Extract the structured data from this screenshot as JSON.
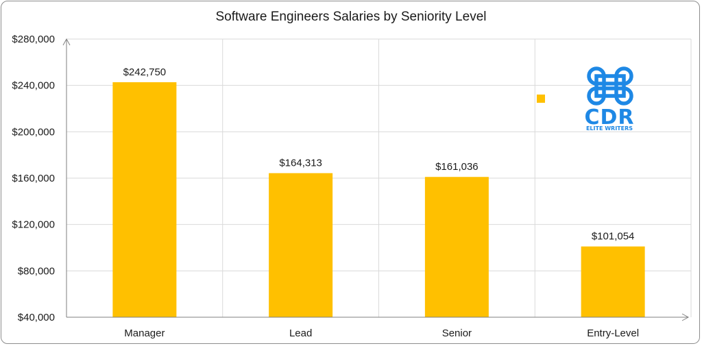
{
  "chart_data": {
    "type": "bar",
    "title": "Software Engineers Salaries by Seniority Level",
    "categories": [
      "Manager",
      "Lead",
      "Senior",
      "Entry-Level"
    ],
    "values": [
      242750,
      164313,
      161036,
      101054
    ],
    "data_labels": [
      "$242,750",
      "$164,313",
      "$161,036",
      "$101,054"
    ],
    "ylim": [
      40000,
      280000
    ],
    "yticks": [
      40000,
      80000,
      120000,
      160000,
      200000,
      240000,
      280000
    ],
    "ytick_labels": [
      "$40,000",
      "$80,000",
      "$120,000",
      "$160,000",
      "$200,000",
      "$240,000",
      "$280,000"
    ],
    "xlabel": "",
    "ylabel": "",
    "grid": true,
    "legend": "none",
    "bar_color": "#FFC000",
    "grid_color": "#d9d9d9",
    "axis_color": "#7f7f7f"
  },
  "logo": {
    "brand_text": "CDR",
    "tagline": "ELITE WRITERS",
    "color": "#1E88E5",
    "marker_color": "#FFC000"
  }
}
